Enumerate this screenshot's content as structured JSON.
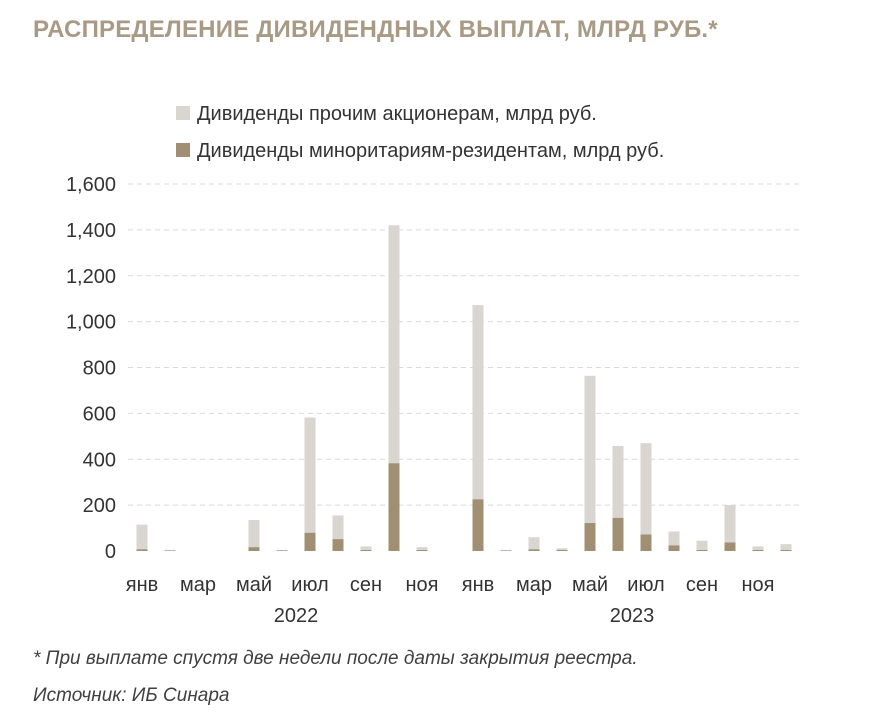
{
  "title": "РАСПРЕДЕЛЕНИЕ ДИВИДЕНДНЫХ ВЫПЛАТ, МЛРД РУБ.*",
  "footnote": "* При выплате спустя две недели после даты закрытия реестра.",
  "source": "Источник: ИБ Синара",
  "colors": {
    "other": "#d9d5d0",
    "minority": "#a08f73",
    "grid": "#d9d9d9",
    "title": "#a89a85"
  },
  "chart_data": {
    "type": "bar",
    "stacked": true,
    "ylim": [
      0,
      1600
    ],
    "yticks": [
      0,
      200,
      400,
      600,
      800,
      1000,
      1200,
      1400,
      1600
    ],
    "ytick_labels": [
      "0",
      "200",
      "400",
      "600",
      "800",
      "1,000",
      "1,200",
      "1,400",
      "1,600"
    ],
    "x_tick_labels": [
      {
        "index": 0,
        "label": "янв"
      },
      {
        "index": 2,
        "label": "мар"
      },
      {
        "index": 4,
        "label": "май"
      },
      {
        "index": 6,
        "label": "июл"
      },
      {
        "index": 8,
        "label": "сен"
      },
      {
        "index": 10,
        "label": "ноя"
      },
      {
        "index": 12,
        "label": "янв"
      },
      {
        "index": 14,
        "label": "мар"
      },
      {
        "index": 16,
        "label": "май"
      },
      {
        "index": 18,
        "label": "июл"
      },
      {
        "index": 20,
        "label": "сен"
      },
      {
        "index": 22,
        "label": "ноя"
      }
    ],
    "year_labels": [
      {
        "center_index": 5.5,
        "label": "2022"
      },
      {
        "center_index": 17.5,
        "label": "2023"
      }
    ],
    "categories": [
      "янв 2022",
      "фев 2022",
      "мар 2022",
      "апр 2022",
      "май 2022",
      "июн 2022",
      "июл 2022",
      "авг 2022",
      "сен 2022",
      "окт 2022",
      "ноя 2022",
      "дек 2022",
      "янв 2023",
      "фев 2023",
      "мар 2023",
      "апр 2023",
      "май 2023",
      "июн 2023",
      "июл 2023",
      "авг 2023",
      "сен 2023",
      "окт 2023",
      "ноя 2023",
      "дек 2023"
    ],
    "series": [
      {
        "name": "Дивиденды миноритариям-резидентам, млрд руб.",
        "key": "minority",
        "values": [
          8,
          2,
          0,
          0,
          17,
          3,
          80,
          52,
          5,
          383,
          5,
          0,
          226,
          2,
          8,
          5,
          122,
          145,
          72,
          25,
          5,
          38,
          5,
          5
        ]
      },
      {
        "name": "Дивиденды прочим акционерам, млрд руб.",
        "key": "other",
        "values": [
          107,
          3,
          0,
          0,
          118,
          2,
          502,
          103,
          15,
          1037,
          12,
          0,
          846,
          3,
          52,
          7,
          642,
          313,
          398,
          60,
          40,
          162,
          15,
          25
        ]
      }
    ],
    "legend": [
      {
        "label": "Дивиденды прочим акционерам, млрд руб.",
        "key": "other"
      },
      {
        "label": "Дивиденды миноритариям-резидентам, млрд руб.",
        "key": "minority"
      }
    ]
  }
}
